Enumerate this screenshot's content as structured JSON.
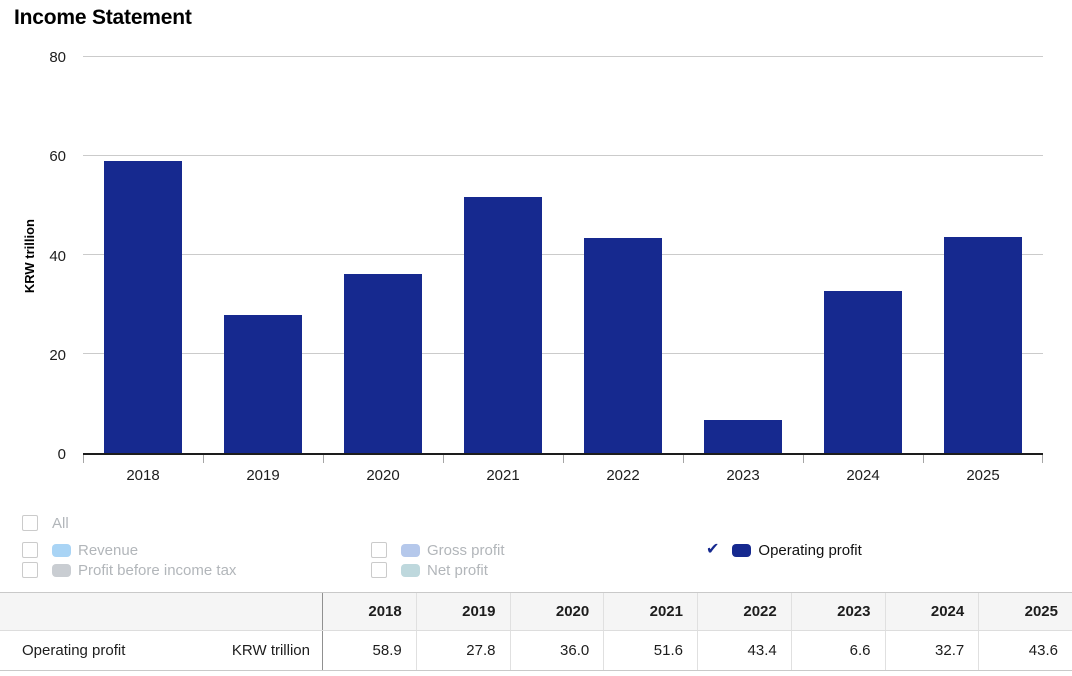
{
  "title": "Income Statement",
  "chart_data": {
    "type": "bar",
    "title": "Income Statement",
    "xlabel": "",
    "ylabel": "KRW trillion",
    "categories": [
      "2018",
      "2019",
      "2020",
      "2021",
      "2022",
      "2023",
      "2024",
      "2025"
    ],
    "series": [
      {
        "name": "Operating profit",
        "color": "#16298f",
        "values": [
          58.9,
          27.8,
          36.0,
          51.6,
          43.4,
          6.6,
          32.7,
          43.6
        ]
      }
    ],
    "ylim": [
      0,
      80
    ],
    "yticks": [
      0,
      20,
      40,
      60,
      80
    ],
    "grid": true,
    "legend_position": "bottom"
  },
  "colors": {
    "bar": "#16298f",
    "check": "#16298f",
    "gridline": "#cbcbcb",
    "axis_line": "#1d1d1d",
    "legend_text_unchecked": "#b2b6ba",
    "table_header_bg": "#f5f5f5"
  },
  "legend": {
    "all_label": "All",
    "items": [
      {
        "label": "Revenue",
        "checked": false,
        "swatch": "#a9d4f5"
      },
      {
        "label": "Gross profit",
        "checked": false,
        "swatch": "#b5c8eb"
      },
      {
        "label": "Profit before income tax",
        "checked": false,
        "swatch": "#c9cdd2"
      },
      {
        "label": "Net profit",
        "checked": false,
        "swatch": "#bed8dd"
      },
      {
        "label": "Operating profit",
        "checked": true,
        "swatch": "#16298f"
      }
    ]
  },
  "table": {
    "row_label": "Operating profit",
    "unit": "KRW trillion",
    "years": [
      "2018",
      "2019",
      "2020",
      "2021",
      "2022",
      "2023",
      "2024",
      "2025"
    ],
    "values": [
      "58.9",
      "27.8",
      "36.0",
      "51.6",
      "43.4",
      "6.6",
      "32.7",
      "43.6"
    ]
  }
}
